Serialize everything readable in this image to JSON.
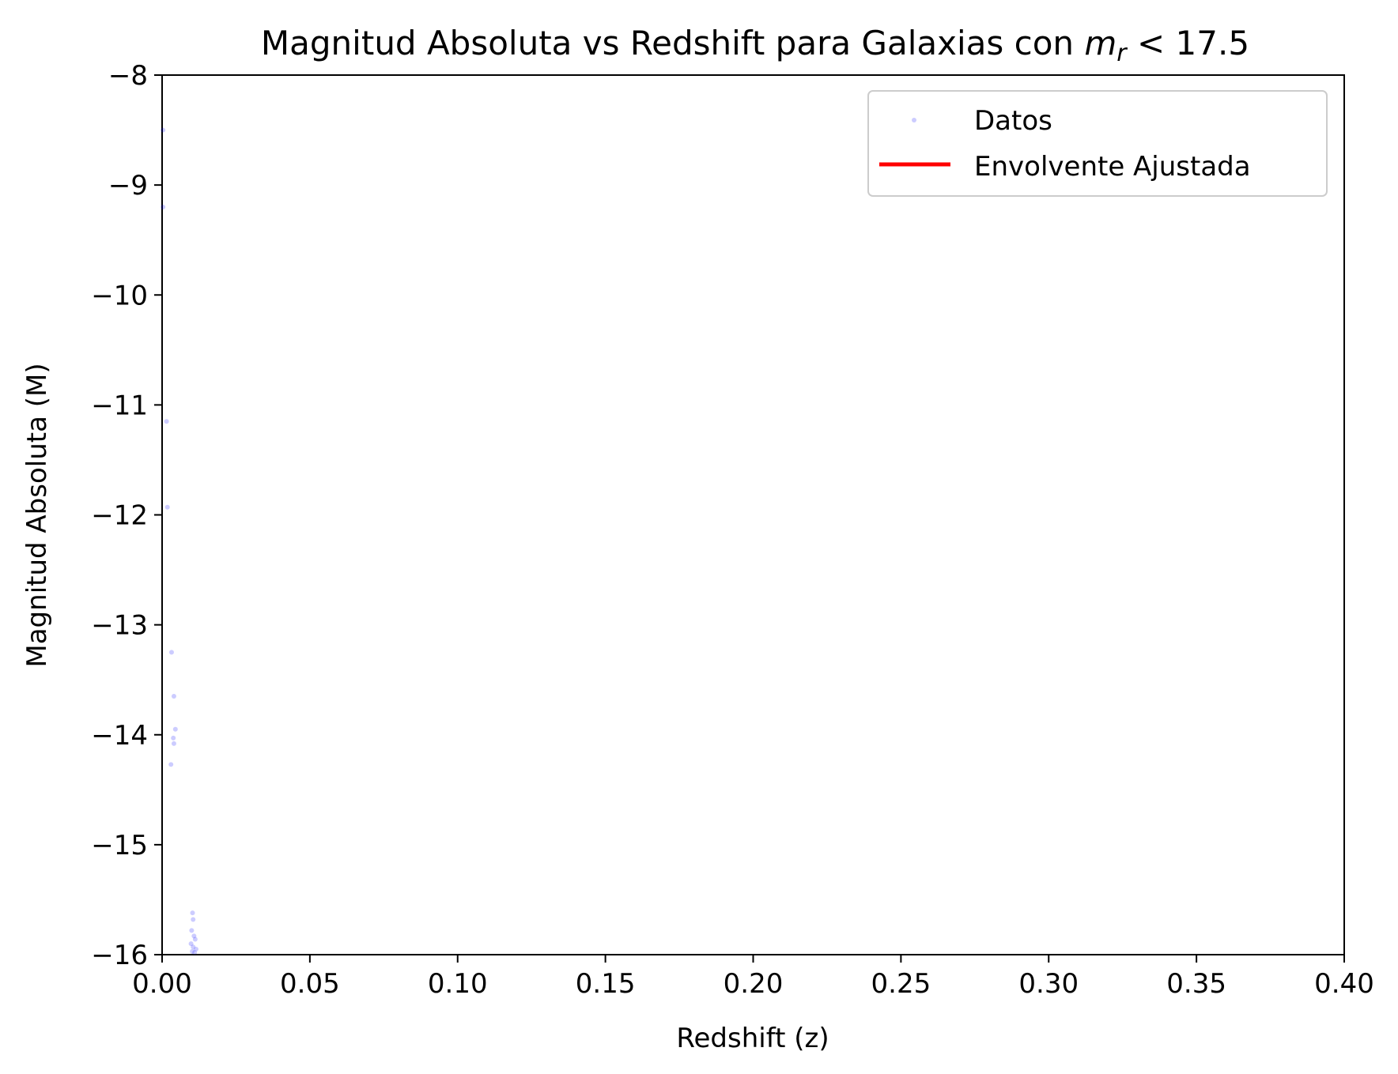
{
  "chart_data": {
    "type": "scatter",
    "title": {
      "main": "Magnitud Absoluta vs Redshift para Galaxias con ",
      "math_var": "m",
      "math_sub": "r",
      "math_rest": " < 17.5"
    },
    "xlabel": "Redshift (z)",
    "ylabel": "Magnitud Absoluta (M)",
    "xlim": [
      0.0,
      0.4
    ],
    "ylim": [
      -16,
      -8
    ],
    "x_ticks": [
      0.0,
      0.05,
      0.1,
      0.15,
      0.2,
      0.25,
      0.3,
      0.35,
      0.4
    ],
    "x_tick_labels": [
      "0.00",
      "0.05",
      "0.10",
      "0.15",
      "0.20",
      "0.25",
      "0.30",
      "0.35",
      "0.40"
    ],
    "y_ticks": [
      -8,
      -9,
      -10,
      -11,
      -12,
      -13,
      -14,
      -15,
      -16
    ],
    "y_tick_labels": [
      "−8",
      "−9",
      "−10",
      "−11",
      "−12",
      "−13",
      "−14",
      "−15",
      "−16"
    ],
    "grid": false,
    "legend_position": "upper-right",
    "series": [
      {
        "name": "Datos",
        "kind": "scatter",
        "color": "#0000ff",
        "opacity": 0.2,
        "points": [
          [
            0.0003,
            -8.5
          ],
          [
            0.0003,
            -9.2
          ],
          [
            0.0015,
            -11.15
          ],
          [
            0.0018,
            -11.93
          ],
          [
            0.0032,
            -13.25
          ],
          [
            0.004,
            -13.65
          ],
          [
            0.0045,
            -13.95
          ],
          [
            0.0038,
            -14.03
          ],
          [
            0.004,
            -14.08
          ],
          [
            0.003,
            -14.27
          ],
          [
            0.0103,
            -15.62
          ],
          [
            0.0105,
            -15.68
          ],
          [
            0.01,
            -15.78
          ],
          [
            0.0108,
            -15.83
          ],
          [
            0.0112,
            -15.86
          ],
          [
            0.0098,
            -15.9
          ],
          [
            0.0105,
            -15.93
          ],
          [
            0.0115,
            -15.95
          ],
          [
            0.0102,
            -15.97
          ],
          [
            0.011,
            -15.98
          ]
        ]
      },
      {
        "name": "Envolvente Ajustada",
        "kind": "line",
        "color": "#ff0000",
        "points": []
      }
    ]
  }
}
